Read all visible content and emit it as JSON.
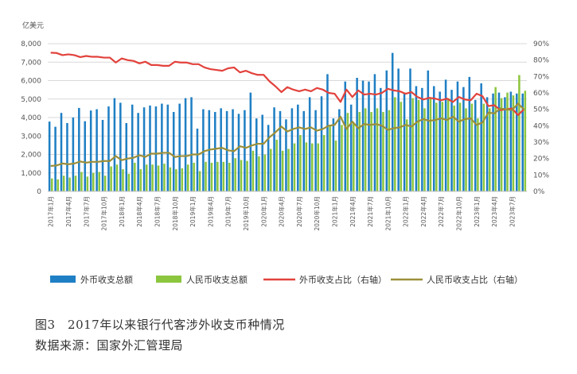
{
  "chart_data": {
    "type": "bar+line",
    "yunit_left": "亿美元",
    "ylim_left": [
      0,
      8000
    ],
    "yticks_left": [
      "0",
      "1,000",
      "2,000",
      "3,000",
      "4,000",
      "5,000",
      "6,000",
      "7,000",
      "8,000"
    ],
    "ylim_right": [
      0,
      90
    ],
    "yticks_right": [
      "0%",
      "10%",
      "20%",
      "30%",
      "40%",
      "50%",
      "60%",
      "70%",
      "80%",
      "90%"
    ],
    "x": [
      "2017年1月",
      "2017年2月",
      "2017年3月",
      "2017年4月",
      "2017年5月",
      "2017年6月",
      "2017年7月",
      "2017年8月",
      "2017年9月",
      "2017年10月",
      "2017年11月",
      "2017年12月",
      "2018年1月",
      "2018年2月",
      "2018年3月",
      "2018年4月",
      "2018年5月",
      "2018年6月",
      "2018年7月",
      "2018年8月",
      "2018年9月",
      "2018年10月",
      "2018年11月",
      "2018年12月",
      "2019年1月",
      "2019年2月",
      "2019年3月",
      "2019年4月",
      "2019年5月",
      "2019年6月",
      "2019年7月",
      "2019年8月",
      "2019年9月",
      "2019年10月",
      "2019年11月",
      "2019年12月",
      "2020年1月",
      "2020年2月",
      "2020年3月",
      "2020年4月",
      "2020年5月",
      "2020年6月",
      "2020年7月",
      "2020年8月",
      "2020年9月",
      "2020年10月",
      "2020年11月",
      "2020年12月",
      "2021年1月",
      "2021年2月",
      "2021年3月",
      "2021年4月",
      "2021年5月",
      "2021年6月",
      "2021年7月",
      "2021年8月",
      "2021年9月",
      "2021年10月",
      "2021年11月",
      "2021年12月",
      "2022年1月",
      "2022年2月",
      "2022年3月",
      "2022年4月",
      "2022年5月",
      "2022年6月",
      "2022年7月",
      "2022年8月",
      "2022年9月",
      "2022年10月",
      "2022年11月",
      "2022年12月",
      "2023年1月",
      "2023年2月",
      "2023年3月",
      "2023年4月",
      "2023年5月",
      "2023年6月",
      "2023年7月",
      "2023年8月",
      "2023年9月"
    ],
    "xtick_labels": [
      "2017年1月",
      "2017年4月",
      "2017年7月",
      "2017年10月",
      "2018年1月",
      "2018年4月",
      "2018年7月",
      "2018年10月",
      "2019年1月",
      "2019年4月",
      "2019年7月",
      "2019年10月",
      "2020年1月",
      "2020年4月",
      "2020年7月",
      "2020年10月",
      "2021年1月",
      "2021年4月",
      "2021年7月",
      "2021年10月",
      "2022年1月",
      "2022年4月",
      "2022年7月",
      "2022年10月",
      "2023年1月",
      "2023年4月",
      "2023年7月"
    ],
    "series": [
      {
        "name": "外币收支总额",
        "kind": "bar",
        "axis": "left",
        "color": "#1f7fc4",
        "values": [
          3780,
          3500,
          4250,
          3700,
          4000,
          4520,
          3800,
          4380,
          4450,
          3870,
          4600,
          5050,
          4800,
          3700,
          4700,
          4250,
          4550,
          4650,
          4600,
          4750,
          4700,
          4300,
          4750,
          5050,
          5100,
          3400,
          4450,
          4400,
          4300,
          4500,
          4350,
          4450,
          4200,
          4400,
          5350,
          3950,
          4150,
          3600,
          4550,
          4350,
          3900,
          4500,
          4700,
          4350,
          5100,
          4400,
          5150,
          6350,
          3950,
          4450,
          5950,
          4700,
          6150,
          6000,
          5950,
          6350,
          5600,
          6550,
          7500,
          6650,
          5350,
          6650,
          5700,
          5600,
          6550,
          5700,
          5400,
          6050,
          5500,
          5950,
          5650,
          6200,
          4950,
          5850,
          5100,
          5300,
          5350,
          5100,
          5400,
          5300,
          5300
        ]
      },
      {
        "name": "人民币收支总额",
        "kind": "bar",
        "axis": "left",
        "color": "#8cc63f",
        "values": [
          700,
          650,
          850,
          750,
          850,
          1050,
          800,
          1000,
          1050,
          850,
          1350,
          1450,
          1200,
          950,
          1550,
          1200,
          1450,
          1450,
          1400,
          1500,
          1300,
          1200,
          1250,
          1450,
          1550,
          1100,
          1600,
          1550,
          1600,
          1600,
          1550,
          1800,
          1700,
          1650,
          2200,
          1900,
          2000,
          2300,
          2800,
          2200,
          2300,
          2600,
          3050,
          2650,
          2600,
          2600,
          3050,
          3600,
          2750,
          3600,
          4250,
          3700,
          4300,
          4500,
          4300,
          4500,
          4300,
          4400,
          5100,
          4850,
          3900,
          5050,
          4950,
          4500,
          5050,
          4800,
          4850,
          5050,
          4650,
          4800,
          4500,
          4750,
          3950,
          4750,
          4500,
          5650,
          5050,
          5350,
          5200,
          6300,
          5450
        ]
      },
      {
        "name": "外币收支占比（右轴）",
        "kind": "line",
        "axis": "right",
        "color": "#e2423c",
        "values": [
          84.5,
          84.3,
          83.0,
          83.5,
          83.0,
          81.8,
          82.5,
          82.0,
          82.0,
          81.5,
          81.5,
          78.5,
          81.0,
          80.0,
          79.5,
          78.0,
          79.0,
          77.0,
          77.0,
          76.5,
          76.5,
          79.0,
          78.5,
          78.5,
          77.5,
          77.5,
          75.5,
          74.5,
          74.0,
          73.5,
          75.0,
          75.5,
          72.5,
          73.5,
          72.0,
          71.0,
          71.0,
          67.0,
          64.0,
          60.5,
          63.5,
          62.0,
          61.0,
          62.0,
          61.0,
          63.0,
          62.0,
          60.0,
          59.5,
          54.5,
          62.0,
          57.5,
          61.5,
          59.0,
          59.5,
          59.0,
          60.0,
          62.5,
          61.5,
          61.0,
          59.5,
          60.5,
          57.5,
          56.0,
          57.0,
          56.5,
          55.5,
          56.5,
          54.5,
          57.5,
          56.0,
          55.5,
          59.5,
          58.0,
          52.0,
          52.5,
          49.5,
          50.0,
          50.5,
          46.5,
          50.0
        ]
      },
      {
        "name": "人民币收支占比（右轴）",
        "kind": "line",
        "axis": "right",
        "color": "#9c8f3a",
        "values": [
          15.5,
          15.8,
          17.0,
          16.5,
          17.0,
          18.2,
          17.5,
          18.0,
          18.0,
          18.5,
          18.5,
          21.5,
          19.0,
          20.0,
          20.5,
          22.0,
          21.0,
          23.0,
          23.0,
          23.5,
          23.5,
          21.0,
          21.5,
          21.5,
          22.5,
          22.5,
          24.5,
          25.5,
          26.0,
          26.5,
          25.0,
          24.5,
          27.5,
          26.5,
          28.0,
          29.0,
          29.0,
          33.0,
          36.0,
          39.5,
          36.5,
          38.0,
          39.0,
          38.0,
          39.0,
          37.0,
          38.0,
          40.0,
          40.5,
          45.5,
          38.0,
          42.5,
          38.5,
          41.0,
          40.5,
          41.0,
          40.0,
          37.5,
          38.5,
          39.0,
          40.5,
          39.5,
          42.5,
          44.0,
          43.0,
          43.5,
          44.5,
          43.5,
          45.5,
          42.5,
          44.0,
          44.5,
          40.5,
          42.0,
          48.0,
          47.5,
          50.5,
          50.0,
          49.5,
          53.5,
          50.0
        ]
      }
    ]
  },
  "caption": {
    "figure_title": "图3　2017年以来银行代客涉外收支币种情况",
    "source": "数据来源：国家外汇管理局"
  }
}
